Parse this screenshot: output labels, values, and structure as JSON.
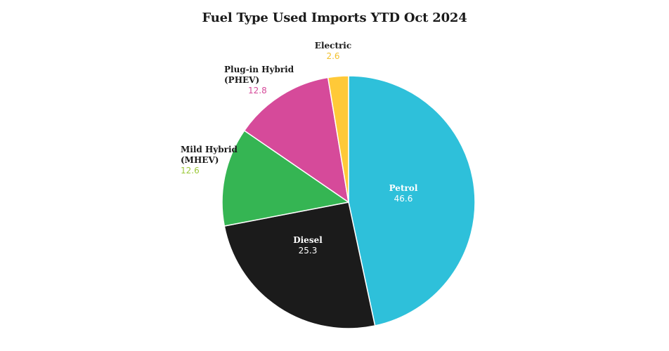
{
  "chart_data": {
    "type": "pie",
    "title": "Fuel Type Used Imports YTD Oct 2024",
    "slices": [
      {
        "label": "Petrol",
        "value": 46.6,
        "display": "46.6",
        "color": "#2EC0DA",
        "label_position": "inside",
        "label_color": "#ffffff"
      },
      {
        "label": "Diesel",
        "value": 25.3,
        "display": "25.3",
        "color": "#1B1B1B",
        "label_position": "inside",
        "label_color": "#ffffff"
      },
      {
        "label": "Mild Hybrid\n(MHEV)",
        "value": 12.6,
        "display": "12.6",
        "color": "#35B553",
        "label_position": "outside",
        "label_color": "#1a1a1a",
        "value_color": "#9CC93A"
      },
      {
        "label": "Plug-in Hybrid\n(PHEV)",
        "value": 12.8,
        "display": "12.8",
        "color": "#D64A9A",
        "label_position": "outside",
        "label_color": "#1a1a1a",
        "value_color": "#D64A9A"
      },
      {
        "label": "Electric",
        "value": 2.6,
        "display": "2.6",
        "color": "#FFC938",
        "label_position": "outside",
        "label_color": "#1a1a1a",
        "value_color": "#F2C12E"
      }
    ],
    "direction": "clockwise",
    "start": "top"
  }
}
